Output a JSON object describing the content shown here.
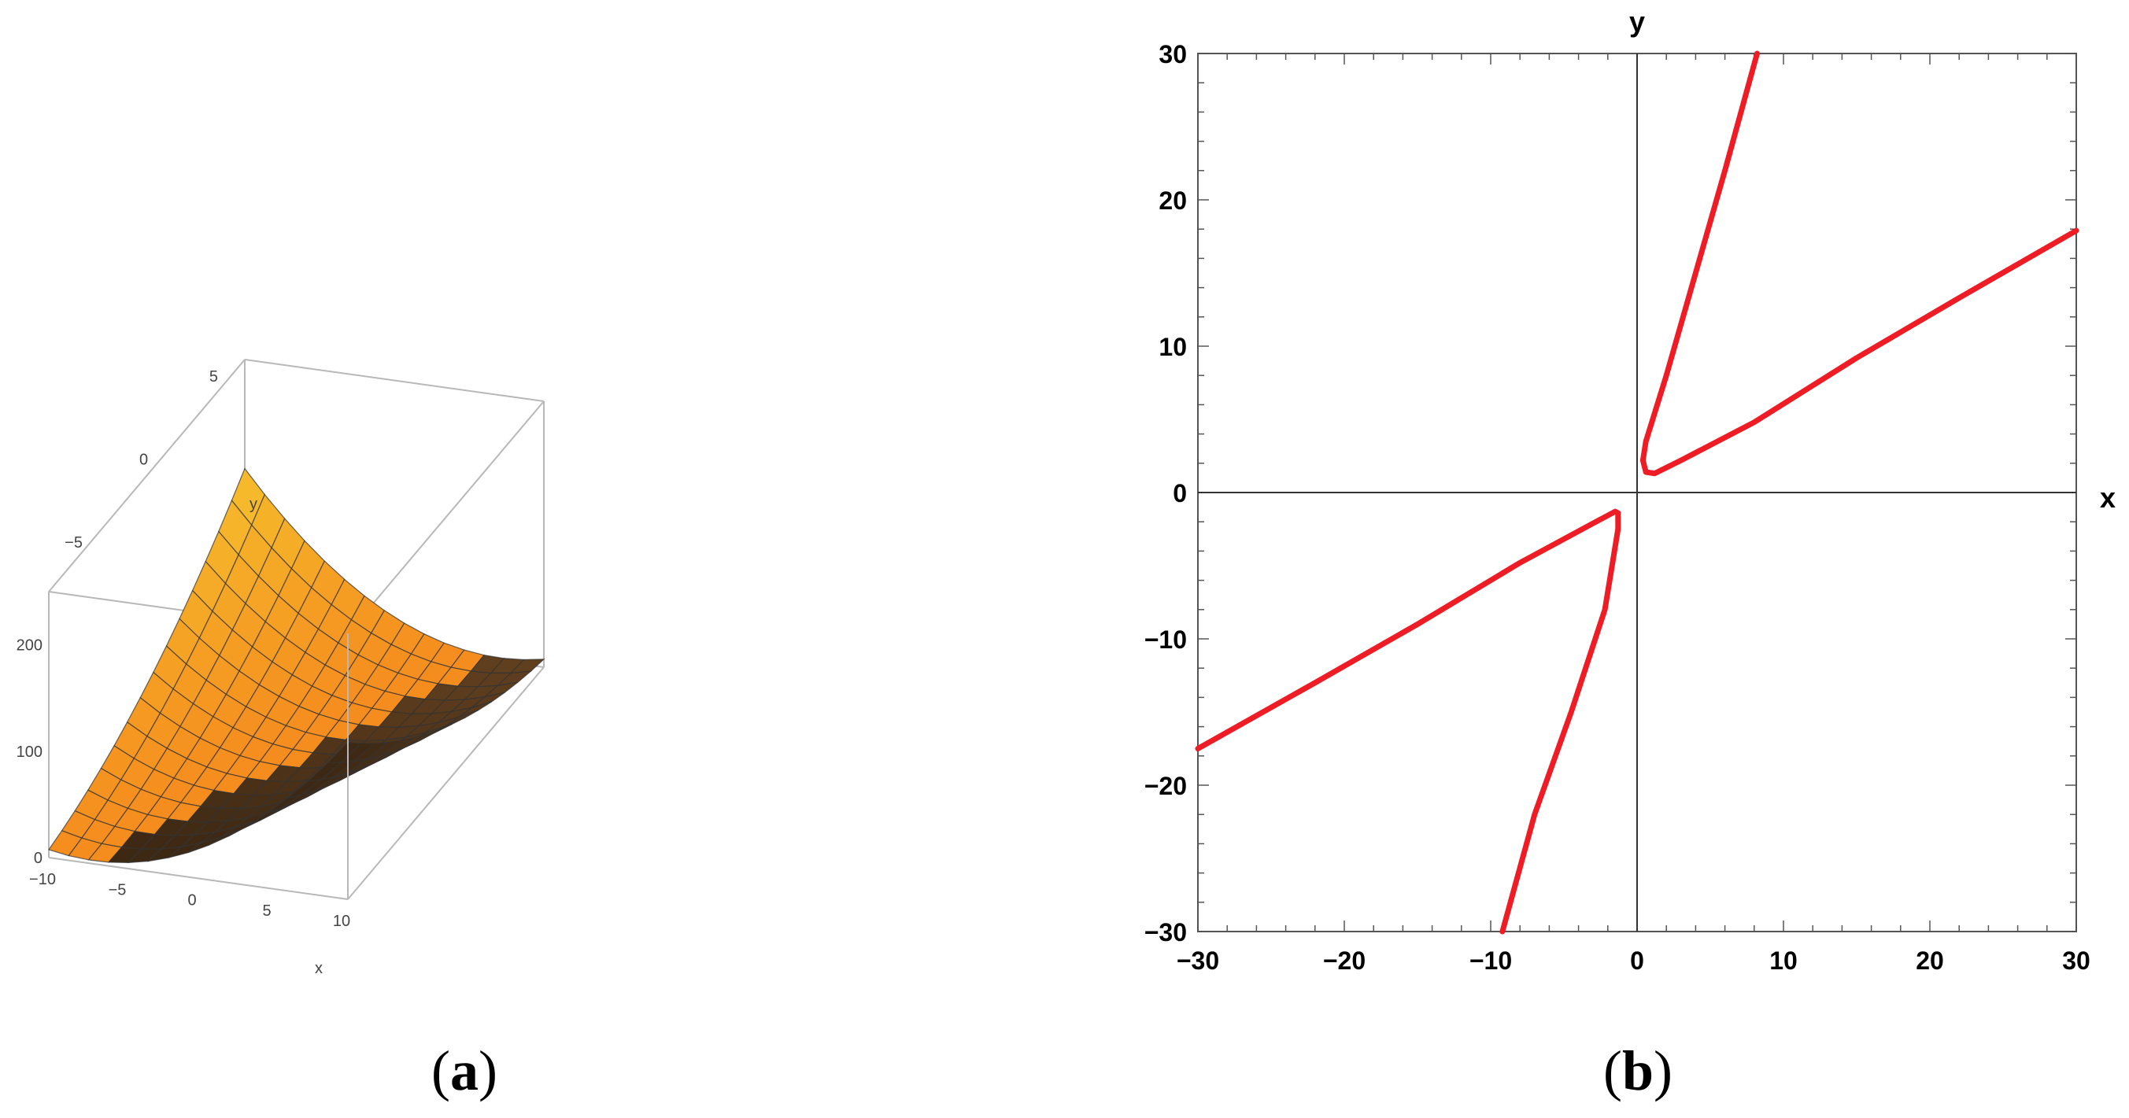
{
  "panels": {
    "a": {
      "open": "(",
      "letter": "a",
      "close": ")"
    },
    "b": {
      "open": "(",
      "letter": "b",
      "close": ")"
    }
  },
  "colors": {
    "curve": "#ee1c24",
    "surface_light": "#f7c21c",
    "surface_mid": "#f49a22",
    "surface_dark": "#5a3a18",
    "box": "#b8b8b8",
    "mesh": "#333333"
  },
  "chart_data": [
    {
      "type": "area",
      "kind": "surface3d",
      "xlabel": "x",
      "ylabel": "y",
      "zlabel": "",
      "x_ticks": [
        "−10",
        "−5",
        "0",
        "5",
        "10"
      ],
      "y_ticks": [
        "−5",
        "0",
        "5"
      ],
      "z_ticks": [
        "0",
        "100",
        "200"
      ],
      "xlim": [
        -10,
        10
      ],
      "ylim": [
        -7,
        7
      ],
      "zlim": [
        0,
        250
      ],
      "mesh": {
        "x_lines": 15,
        "y_lines": 15
      }
    },
    {
      "type": "line",
      "xlabel": "x",
      "ylabel": "y",
      "xlim": [
        -30,
        30
      ],
      "ylim": [
        -30,
        30
      ],
      "x_ticks": [
        "−30",
        "−20",
        "−10",
        "0",
        "10",
        "20",
        "30"
      ],
      "y_ticks": [
        "−30",
        "−20",
        "−10",
        "0",
        "10",
        "20",
        "30"
      ],
      "x_tick_values": [
        -30,
        -20,
        -10,
        0,
        10,
        20,
        30
      ],
      "y_tick_values": [
        -30,
        -20,
        -10,
        0,
        10,
        20,
        30
      ],
      "grid": false,
      "series": [
        {
          "points": [
            [
              8.2,
              30
            ],
            [
              6,
              22
            ],
            [
              4,
              15
            ],
            [
              2,
              8
            ],
            [
              0.6,
              3.5
            ],
            [
              0.4,
              2.2
            ],
            [
              0.6,
              1.4
            ],
            [
              1.2,
              1.3
            ],
            [
              3,
              2.2
            ],
            [
              8,
              4.8
            ],
            [
              15,
              9.2
            ],
            [
              22,
              13.3
            ],
            [
              30,
              17.9
            ]
          ]
        },
        {
          "points": [
            [
              -30,
              -17.5
            ],
            [
              -22,
              -13
            ],
            [
              -15,
              -9
            ],
            [
              -8,
              -4.8
            ],
            [
              -3,
              -2.1
            ],
            [
              -1.5,
              -1.3
            ],
            [
              -1.3,
              -1.4
            ],
            [
              -1.3,
              -2.5
            ],
            [
              -2.2,
              -8
            ],
            [
              -4.5,
              -15
            ],
            [
              -7,
              -22
            ],
            [
              -9.2,
              -30
            ]
          ]
        }
      ]
    }
  ]
}
